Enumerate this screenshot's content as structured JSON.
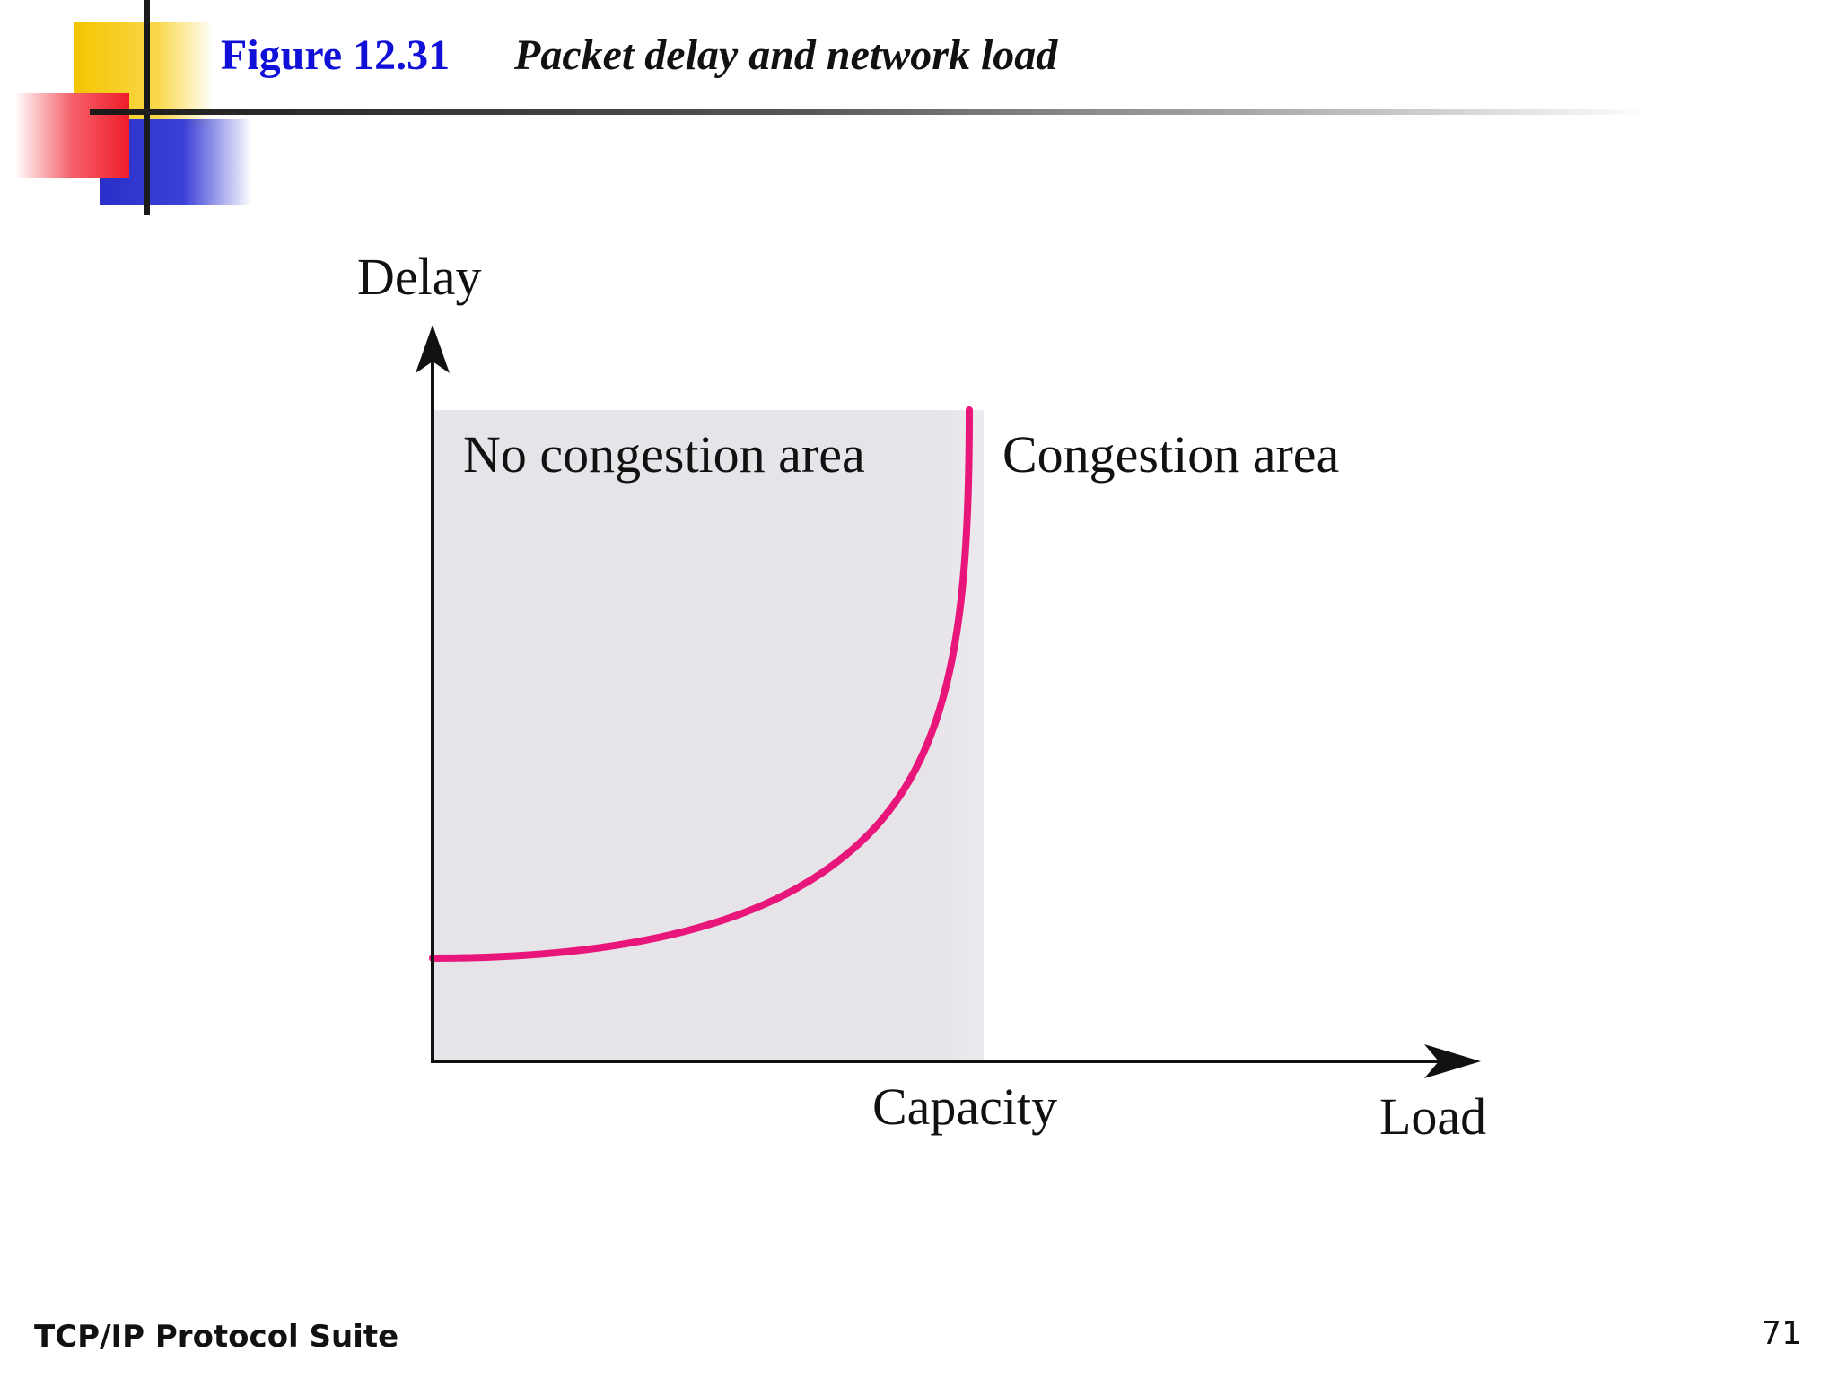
{
  "slide": {
    "figure_number": "Figure 12.31",
    "figure_caption": "Packet delay and network load"
  },
  "diagram": {
    "y_axis_label": "Delay",
    "x_axis_label": "Load",
    "capacity_label": "Capacity",
    "no_congestion_label": "No congestion area",
    "congestion_label": "Congestion area",
    "curve_color": "#e8157a",
    "shaded_region_color": "#e6e4e8"
  },
  "footer": {
    "left_text": "TCP/IP Protocol Suite",
    "page_number": "71"
  }
}
